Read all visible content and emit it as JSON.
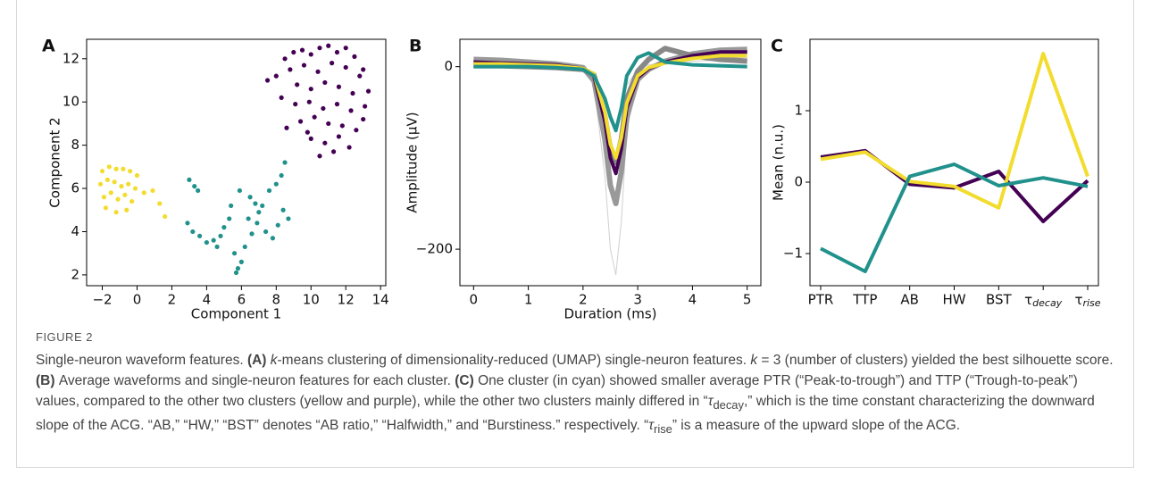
{
  "chart_data": [
    {
      "type": "scatter",
      "label": "A",
      "xlabel": "Component 1",
      "ylabel": "Component 2",
      "xlim": [
        -2.9,
        14.3
      ],
      "ylim": [
        1.5,
        12.9
      ],
      "xticks": [
        {
          "value": -2,
          "label": "−2"
        },
        0,
        2,
        4,
        6,
        8,
        10,
        12,
        14
      ],
      "yticks": [
        2,
        4,
        6,
        8,
        10,
        12
      ],
      "series": [
        {
          "color": "#440154",
          "x": [
            8.5,
            9,
            9.5,
            10,
            10.5,
            11,
            11.5,
            12,
            12.5,
            13,
            8,
            8.8,
            9.6,
            10.4,
            11.2,
            12,
            12.8,
            13.3,
            9.2,
            10,
            10.8,
            11.6,
            12.4,
            13.1,
            8.3,
            9.1,
            9.9,
            10.7,
            11.5,
            12.3,
            13,
            9.4,
            10.2,
            11,
            11.8,
            12.6,
            10,
            10.8,
            11.6,
            7.5,
            8.6,
            12.2,
            10.5,
            11.3,
            9.8
          ],
          "y": [
            12,
            12.3,
            12.4,
            12.2,
            12.5,
            12.6,
            12.3,
            12.5,
            12.1,
            11.5,
            11.2,
            11.5,
            11.7,
            11.4,
            11.8,
            11.6,
            11.2,
            10.5,
            10.8,
            10.6,
            10.9,
            10.7,
            10.4,
            9.8,
            10.2,
            9.9,
            10,
            9.7,
            9.9,
            9.6,
            9.2,
            9.1,
            9.3,
            9,
            8.9,
            8.7,
            8.3,
            8.1,
            8.4,
            11,
            8.8,
            7.9,
            7.5,
            7.7,
            8.6
          ]
        },
        {
          "color": "#f2dc2e",
          "x": [
            -2,
            -1.6,
            -1.2,
            -0.8,
            -0.4,
            0,
            -2.1,
            -1.7,
            -1.3,
            -0.9,
            -0.5,
            -0.1,
            -1.9,
            -1.5,
            -1.1,
            -0.7,
            -0.3,
            -1.8,
            -1.2,
            -0.6,
            0.4,
            0.9,
            1.3,
            1.6
          ],
          "y": [
            6.8,
            7,
            6.9,
            6.9,
            6.8,
            6.6,
            6.2,
            6.4,
            6.3,
            6.1,
            6.2,
            6,
            5.6,
            5.8,
            5.5,
            5.7,
            5.4,
            5.1,
            4.9,
            5,
            5.8,
            5.9,
            5.3,
            4.7
          ]
        },
        {
          "color": "#21918c",
          "x": [
            3,
            3.3,
            3.5,
            2.9,
            3.2,
            3.6,
            4,
            4.4,
            4.8,
            5,
            5.3,
            5.6,
            5.8,
            6,
            5.7,
            6.2,
            6.5,
            6.8,
            7,
            7.2,
            6.4,
            6.9,
            7.4,
            7.8,
            8.1,
            8.4,
            8.7,
            7.6,
            8,
            8.3,
            8.5,
            6.6,
            5.4,
            5.9,
            4.6
          ],
          "y": [
            6.4,
            6.1,
            5.9,
            4.4,
            4,
            3.8,
            3.5,
            3.6,
            3.8,
            4.2,
            4.6,
            3,
            2.3,
            2.6,
            2.1,
            3.3,
            5.6,
            5.3,
            4.9,
            5.2,
            4.6,
            4.4,
            4,
            3.7,
            4.3,
            5,
            4.6,
            5.9,
            6.2,
            6.6,
            7.2,
            3.9,
            5.2,
            5.9,
            3.3
          ]
        }
      ]
    },
    {
      "type": "line",
      "label": "B",
      "xlabel": "Duration (ms)",
      "ylabel": "Amplitude (μV)",
      "xlim": [
        -0.25,
        5.25
      ],
      "ylim": [
        -240,
        30
      ],
      "xticks": [
        0,
        1,
        2,
        3,
        4,
        5
      ],
      "yticks": [
        {
          "value": -200,
          "label": "−200"
        },
        0
      ],
      "x": [
        0,
        0.5,
        1,
        1.5,
        2,
        2.2,
        2.4,
        2.5,
        2.6,
        2.7,
        2.8,
        3,
        3.2,
        3.5,
        4,
        4.5,
        5
      ],
      "series": [
        {
          "color": "#d0d0d0",
          "linewidth": 1,
          "values": [
            2,
            2,
            1,
            0,
            -5,
            -20,
            -120,
            -200,
            -228,
            -170,
            -70,
            -15,
            -3,
            3,
            8,
            10,
            10
          ]
        },
        {
          "color": "#d0d0d0",
          "linewidth": 1,
          "values": [
            0,
            0,
            -1,
            -2,
            -4,
            -12,
            -40,
            -60,
            -66,
            -50,
            -20,
            -3,
            2,
            4,
            6,
            7,
            7
          ]
        },
        {
          "color": "#999999",
          "linewidth": 6,
          "values": [
            8,
            7,
            5,
            3,
            -1,
            -15,
            -80,
            -130,
            -150,
            -115,
            -55,
            -14,
            -3,
            6,
            14,
            18,
            19
          ]
        },
        {
          "color": "#888888",
          "linewidth": 6,
          "values": [
            1,
            1,
            0,
            -1,
            -3,
            -9,
            -55,
            -90,
            -105,
            -80,
            -35,
            -5,
            8,
            20,
            12,
            8,
            6
          ]
        },
        {
          "color": "#440154",
          "linewidth": 4,
          "values": [
            5,
            4,
            3,
            2,
            -2,
            -10,
            -60,
            -100,
            -117,
            -90,
            -45,
            -12,
            -2,
            5,
            12,
            16,
            16
          ]
        },
        {
          "color": "#f2dc2e",
          "linewidth": 4,
          "values": [
            3,
            3,
            2,
            1,
            -2,
            -8,
            -50,
            -85,
            -100,
            -78,
            -40,
            -10,
            -1,
            4,
            9,
            12,
            12
          ]
        },
        {
          "color": "#21918c",
          "linewidth": 4,
          "values": [
            0,
            0,
            0,
            -1,
            -3,
            -10,
            -35,
            -55,
            -70,
            -45,
            -10,
            10,
            15,
            5,
            2,
            1,
            0
          ]
        }
      ]
    },
    {
      "type": "line",
      "label": "C",
      "ylabel": "Mean (n.u.)",
      "ylim": [
        -1.45,
        2.0
      ],
      "yticks": [
        {
          "value": -1,
          "label": "−1"
        },
        0,
        1
      ],
      "categories": [
        "PTR",
        "TTP",
        "AB",
        "HW",
        "BST",
        {
          "symbol": "τ",
          "subscript": "decay"
        },
        {
          "symbol": "τ",
          "subscript": "rise"
        }
      ],
      "series": [
        {
          "color": "#440154",
          "linewidth": 4,
          "values": [
            0.35,
            0.44,
            -0.03,
            -0.08,
            0.15,
            -0.55,
            0.02
          ]
        },
        {
          "color": "#f2dc2e",
          "linewidth": 4,
          "values": [
            0.32,
            0.42,
            0.01,
            -0.06,
            -0.36,
            1.8,
            0.08
          ]
        },
        {
          "color": "#21918c",
          "linewidth": 4,
          "values": [
            -0.93,
            -1.25,
            0.08,
            0.25,
            -0.05,
            0.06,
            -0.06
          ]
        }
      ]
    }
  ],
  "figure": {
    "label": "FIGURE 2",
    "caption": [
      {
        "style": "normal",
        "text": "Single-neuron waveform features. "
      },
      {
        "style": "bold",
        "text": "(A) "
      },
      {
        "style": "italic",
        "text": "k"
      },
      {
        "style": "normal",
        "text": "-means clustering of dimensionality-reduced (UMAP) single-neuron features. "
      },
      {
        "style": "italic",
        "text": "k"
      },
      {
        "style": "normal",
        "text": " = 3 (number of clusters) yielded the best silhouette score. "
      },
      {
        "style": "bold",
        "text": "(B) "
      },
      {
        "style": "normal",
        "text": "Average waveforms and single-neuron features for each cluster. "
      },
      {
        "style": "bold",
        "text": "(C) "
      },
      {
        "style": "normal",
        "text": "One cluster (in cyan) showed smaller average PTR (“Peak-to-trough”) and TTP (“Trough-to-peak”) values, compared to the other two clusters (yellow and purple), while the other two clusters mainly differed in “"
      },
      {
        "style": "italic",
        "text": "τ"
      },
      {
        "style": "sub",
        "text": "decay"
      },
      {
        "style": "normal",
        "text": ",” which is the time constant characterizing the downward slope of the ACG. “AB,” “HW,” “BST” denotes “AB ratio,” “Halfwidth,” and “Burstiness.” respectively. “"
      },
      {
        "style": "italic",
        "text": "τ"
      },
      {
        "style": "sub",
        "text": "rise"
      },
      {
        "style": "normal",
        "text": "” is a measure of the upward slope of the ACG."
      }
    ]
  }
}
